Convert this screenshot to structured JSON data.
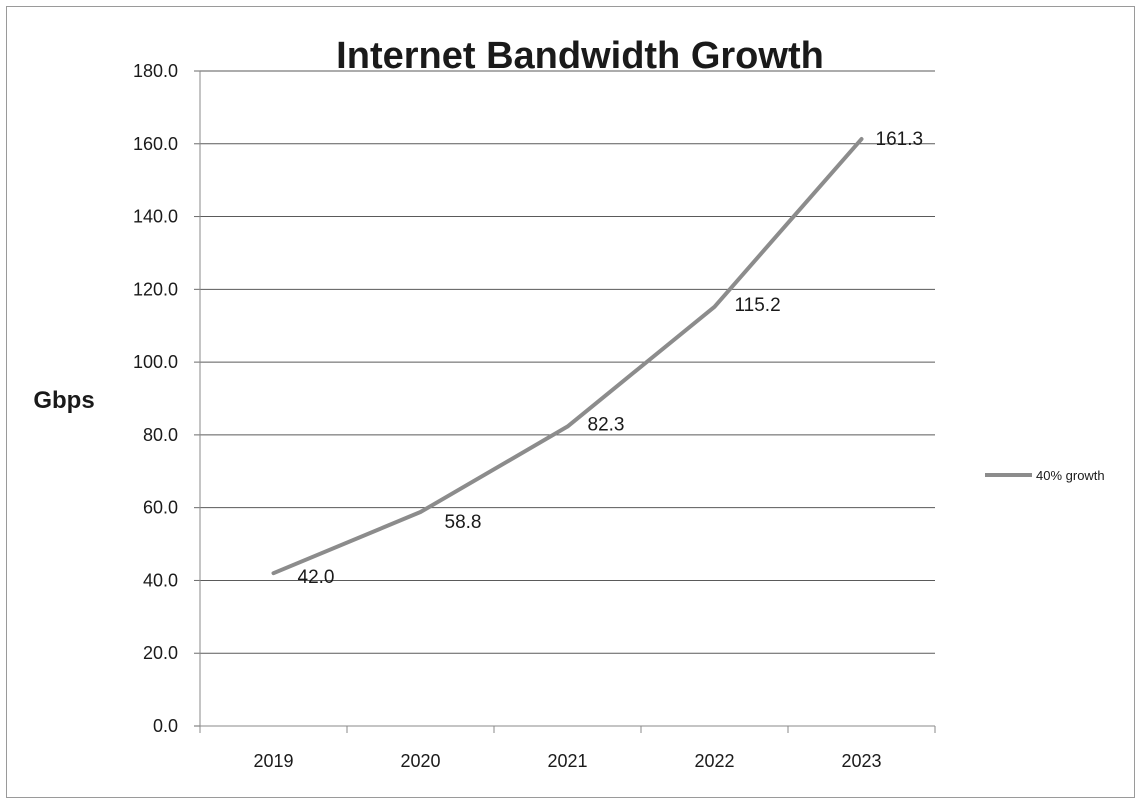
{
  "chart_data": {
    "type": "line",
    "title": "Internet Bandwidth Growth",
    "xlabel": "",
    "ylabel": "Gbps",
    "categories": [
      "2019",
      "2020",
      "2021",
      "2022",
      "2023"
    ],
    "series": [
      {
        "name": "40% growth",
        "values": [
          42.0,
          58.8,
          82.3,
          115.2,
          161.3
        ],
        "color": "#8c8c8c"
      }
    ],
    "data_labels": [
      "42.0",
      "58.8",
      "82.3",
      "115.2",
      "161.3"
    ],
    "ylim": [
      0,
      180
    ],
    "yticks": [
      "0.0",
      "20.0",
      "40.0",
      "60.0",
      "80.0",
      "100.0",
      "120.0",
      "140.0",
      "160.0",
      "180.0"
    ],
    "grid": true,
    "legend_position": "right"
  }
}
